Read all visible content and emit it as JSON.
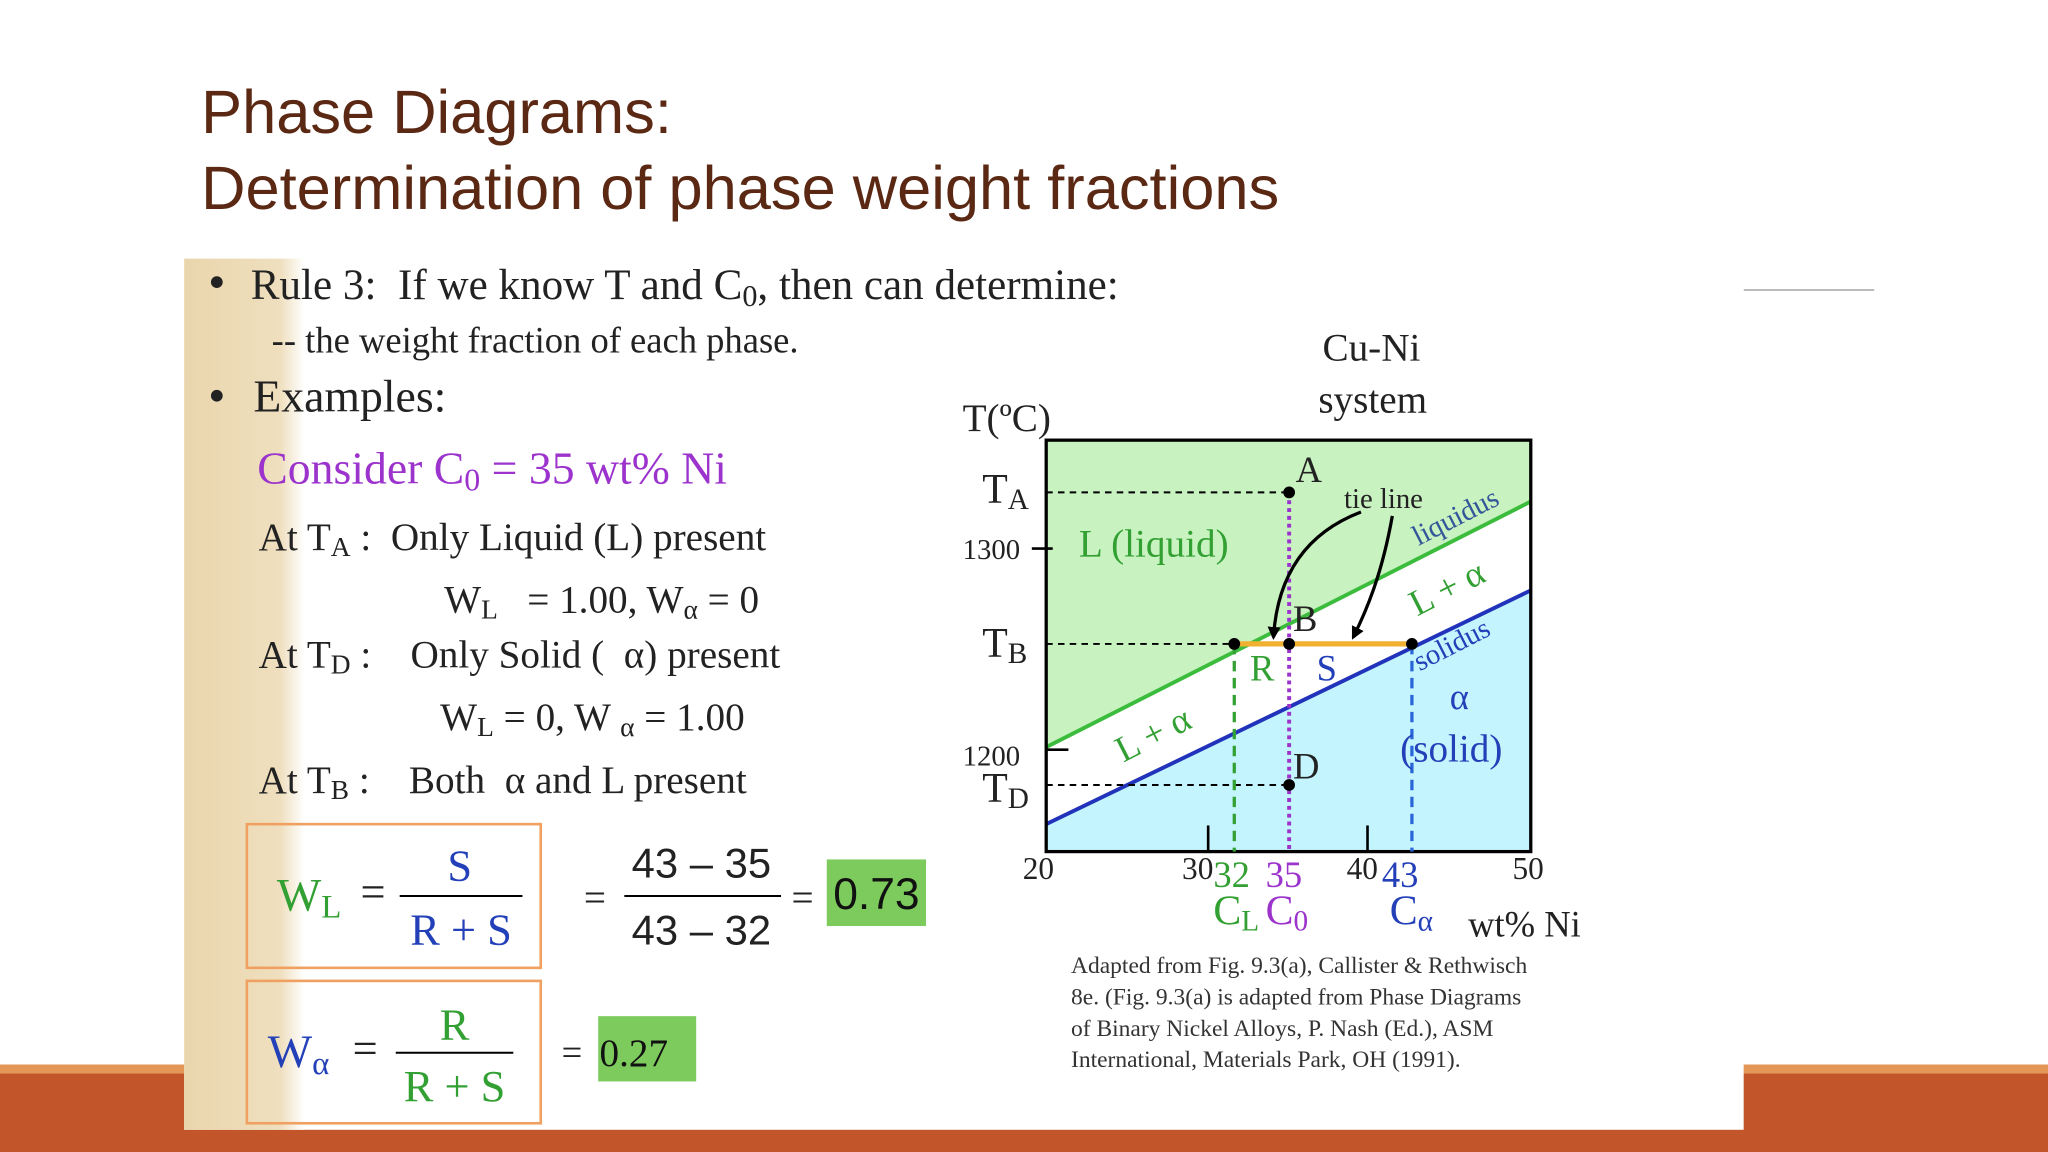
{
  "title": {
    "line1": "Phase Diagrams:",
    "line2": "Determination of phase weight fractions"
  },
  "content": {
    "rule": [
      {
        "text": "Rule 3:"
      },
      {
        "text": "  If we know T and C"
      },
      {
        "text": "0",
        "sub": true
      },
      {
        "text": ", then can determine:"
      }
    ],
    "rule_detail": [
      {
        "text": "-- the weight fraction of each phase."
      }
    ],
    "examples": [
      {
        "text": "Examples:"
      }
    ],
    "consider": [
      {
        "text": "Consider C"
      },
      {
        "text": "0",
        "sub": true
      },
      {
        "text": " = 35 wt% Ni"
      }
    ],
    "at_ta": [
      {
        "text": "At T"
      },
      {
        "text": "A",
        "sub": true
      },
      {
        "text": " :  Only Liquid (L) present"
      }
    ],
    "ta_values": [
      {
        "text": "W"
      },
      {
        "text": "L",
        "sub": true
      },
      {
        "text": "   = 1.00, W"
      },
      {
        "text": "α",
        "sub": true
      },
      {
        "text": " = 0"
      }
    ],
    "at_td": [
      {
        "text": "At T"
      },
      {
        "text": "D",
        "sub": true
      },
      {
        "text": " :    Only Solid (  α) present"
      }
    ],
    "td_values": [
      {
        "text": "W"
      },
      {
        "text": "L",
        "sub": true
      },
      {
        "text": " = 0, W "
      },
      {
        "text": "α",
        "sub": true
      },
      {
        "text": " = 1.00"
      }
    ],
    "at_tb": [
      {
        "text": "At T"
      },
      {
        "text": "B",
        "sub": true
      },
      {
        "text": " :    Both  α and L present"
      }
    ]
  },
  "formula_l": {
    "lhs": [
      {
        "text": "W"
      },
      {
        "text": "L",
        "sub": true
      }
    ],
    "eq": "=",
    "num": "S",
    "den": "R + S",
    "num2": "43 – 35",
    "den2": "43 – 32",
    "result": "0.73"
  },
  "formula_alpha": {
    "lhs": [
      {
        "text": "W"
      },
      {
        "text": "α",
        "sub": true
      }
    ],
    "eq": "=",
    "num": "R",
    "den": "R + S",
    "result": "0.27"
  },
  "diagram": {
    "system": [
      "Cu-Ni",
      "system"
    ],
    "y_axis_label": "T(ºC)",
    "ta": [
      {
        "text": "T"
      },
      {
        "text": "A",
        "sub": true
      }
    ],
    "tb": [
      {
        "text": "T"
      },
      {
        "text": "B",
        "sub": true
      }
    ],
    "td": [
      {
        "text": "T"
      },
      {
        "text": "D",
        "sub": true
      }
    ],
    "t_ticks": [
      "1300",
      "1200"
    ],
    "points": [
      "A",
      "B",
      "D"
    ],
    "tie_line": "tie line",
    "liquidus": "liquidus",
    "solidus": "solidus",
    "region_liquid": "L (liquid)",
    "region_two_phase": "L + α",
    "region_r": "R",
    "region_s": "S",
    "region_alpha": "α",
    "region_solid": "(solid)",
    "x_ticks": [
      "20",
      "30",
      "40",
      "50"
    ],
    "marked_compositions": [
      "32",
      "35",
      "43"
    ],
    "composition_labels": [
      [
        {
          "text": "C"
        },
        {
          "text": "L",
          "sub": true
        }
      ],
      [
        {
          "text": "C"
        },
        {
          "text": "0",
          "sub": true
        }
      ],
      [
        {
          "text": "C"
        },
        {
          "text": "α",
          "sub": true
        }
      ]
    ],
    "x_axis_label": "wt% Ni",
    "caption": [
      "Adapted from Fig. 9.3(a), Callister & Rethwisch",
      "8e. (Fig. 9.3(a) is adapted from Phase Diagrams",
      "of Binary Nickel Alloys, P. Nash (Ed.), ASM",
      "International, Materials Park, OH (1991)."
    ]
  }
}
